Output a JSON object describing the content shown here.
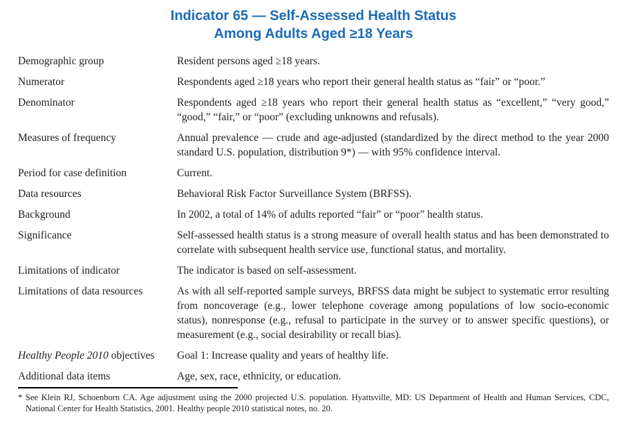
{
  "title": {
    "line1": "Indicator 65 — Self-Assessed Health Status",
    "line2": "Among Adults Aged ≥18 Years"
  },
  "accent_color": "#1b6cb5",
  "rows": [
    {
      "label": "Demographic group",
      "text": "Resident persons aged ≥18 years."
    },
    {
      "label": "Numerator",
      "text": "Respondents aged ≥18 years who report their general health status as “fair” or “poor.”"
    },
    {
      "label": "Denominator",
      "text": "Respondents aged ≥18 years who report their general health status as “excellent,” “very good,” “good,” “fair,” or “poor” (excluding unknowns and refusals)."
    },
    {
      "label": "Measures of frequency",
      "text": "Annual prevalence — crude and age-adjusted (standardized by the direct method to the year 2000 standard U.S. population, distribution 9*) — with 95% confidence interval."
    },
    {
      "label": "Period for case definition",
      "text": "Current."
    },
    {
      "label": "Data resources",
      "text": "Behavioral Risk Factor Surveillance System (BRFSS)."
    },
    {
      "label": "Background",
      "text": "In 2002, a total of 14% of adults reported “fair” or “poor” health status."
    },
    {
      "label": "Significance",
      "text": "Self-assessed health status is a strong measure of overall health status and has been demonstrated to correlate with subsequent health service use, functional status, and mortality."
    },
    {
      "label": "Limitations of indicator",
      "text": "The indicator is based on self-assessment."
    },
    {
      "label": "Limitations of data resources",
      "text": "As with all self-reported sample surveys, BRFSS data might be subject to systematic error resulting from noncoverage (e.g., lower telephone coverage among populations of low socio-economic status), nonresponse (e.g., refusal to participate in the survey or to answer specific questions), or measurement (e.g., social desirability or recall bias)."
    },
    {
      "label_italic": "Healthy People 2010",
      "label_rest": " objectives",
      "text": "Goal 1: Increase quality and years of healthy life."
    },
    {
      "label": "Additional data items",
      "text": "Age, sex, race, ethnicity, or education."
    }
  ],
  "footnote": "* See Klein RJ, Schoenborn CA. Age adjustment using the 2000 projected U.S. population. Hyattsville, MD: US Department of Health and Human Services, CDC, National Center for Health Statistics, 2001. Healthy people 2010 statistical notes, no. 20."
}
